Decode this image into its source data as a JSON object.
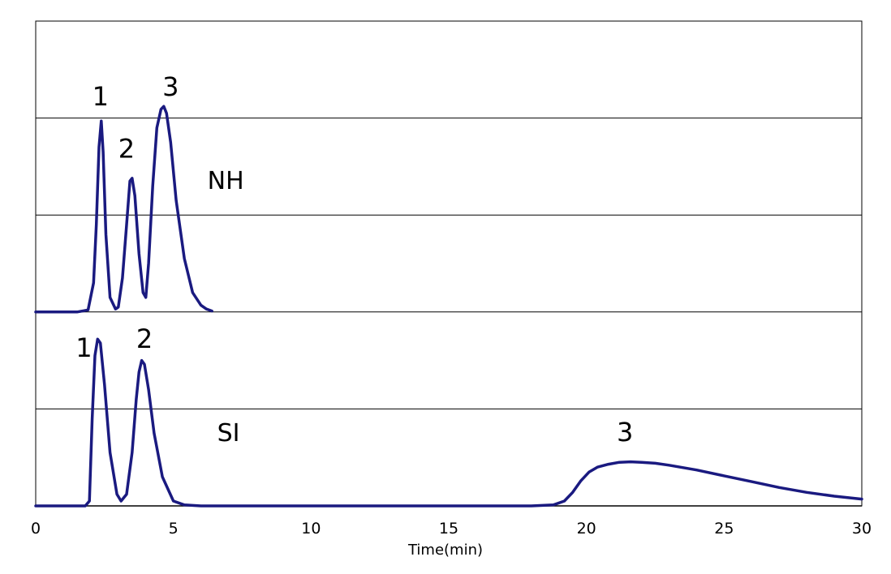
{
  "chart_data": {
    "type": "line",
    "xlabel": "Time(min)",
    "ylabel": "",
    "xlim": [
      0,
      30
    ],
    "ylim": [
      0,
      5
    ],
    "x_ticks": [
      "0",
      "5",
      "10",
      "15",
      "20",
      "25",
      "30"
    ],
    "grid": "horizontal",
    "colors": {
      "line": "#1a1a80",
      "grid": "#000000"
    },
    "series": [
      {
        "name": "NH",
        "x": [
          0.0,
          1.5,
          1.9,
          2.1,
          2.2,
          2.3,
          2.38,
          2.45,
          2.55,
          2.7,
          2.9,
          3.0,
          3.15,
          3.3,
          3.42,
          3.5,
          3.6,
          3.75,
          3.9,
          4.0,
          4.1,
          4.25,
          4.4,
          4.55,
          4.65,
          4.75,
          4.9,
          5.1,
          5.4,
          5.7,
          6.0,
          6.2,
          6.4
        ],
        "y": [
          2.0,
          2.0,
          2.02,
          2.3,
          2.9,
          3.7,
          3.97,
          3.65,
          2.8,
          2.15,
          2.03,
          2.05,
          2.35,
          2.9,
          3.35,
          3.38,
          3.2,
          2.6,
          2.2,
          2.15,
          2.5,
          3.3,
          3.9,
          4.09,
          4.12,
          4.05,
          3.75,
          3.15,
          2.55,
          2.2,
          2.07,
          2.03,
          2.01
        ]
      },
      {
        "name": "SI",
        "x": [
          0.0,
          1.8,
          1.95,
          2.05,
          2.15,
          2.25,
          2.35,
          2.5,
          2.7,
          2.95,
          3.1,
          3.3,
          3.5,
          3.65,
          3.75,
          3.85,
          3.95,
          4.1,
          4.3,
          4.6,
          5.0,
          5.4,
          6.0,
          10.0,
          15.0,
          18.0,
          18.8,
          19.2,
          19.5,
          19.8,
          20.1,
          20.4,
          20.8,
          21.2,
          21.6,
          22.0,
          22.5,
          23.0,
          24.0,
          25.0,
          26.0,
          27.0,
          28.0,
          29.0,
          30.0
        ],
        "y": [
          0.0,
          0.0,
          0.05,
          0.9,
          1.55,
          1.72,
          1.68,
          1.25,
          0.55,
          0.12,
          0.05,
          0.12,
          0.55,
          1.1,
          1.38,
          1.5,
          1.46,
          1.2,
          0.75,
          0.3,
          0.05,
          0.01,
          0.0,
          0.0,
          0.0,
          0.0,
          0.01,
          0.05,
          0.14,
          0.26,
          0.35,
          0.4,
          0.43,
          0.45,
          0.455,
          0.45,
          0.44,
          0.42,
          0.37,
          0.31,
          0.25,
          0.19,
          0.14,
          0.1,
          0.07
        ]
      }
    ],
    "annotations": [
      {
        "text": "1",
        "x": 2.35,
        "y": 4.13
      },
      {
        "text": "2",
        "x": 3.3,
        "y": 3.59
      },
      {
        "text": "3",
        "x": 4.9,
        "y": 4.23
      },
      {
        "text": "NH",
        "x": 6.9,
        "y": 3.27
      },
      {
        "text": "1",
        "x": 1.75,
        "y": 1.54
      },
      {
        "text": "2",
        "x": 3.95,
        "y": 1.63
      },
      {
        "text": "SI",
        "x": 7.0,
        "y": 0.67
      },
      {
        "text": "3",
        "x": 21.4,
        "y": 0.67
      }
    ]
  }
}
